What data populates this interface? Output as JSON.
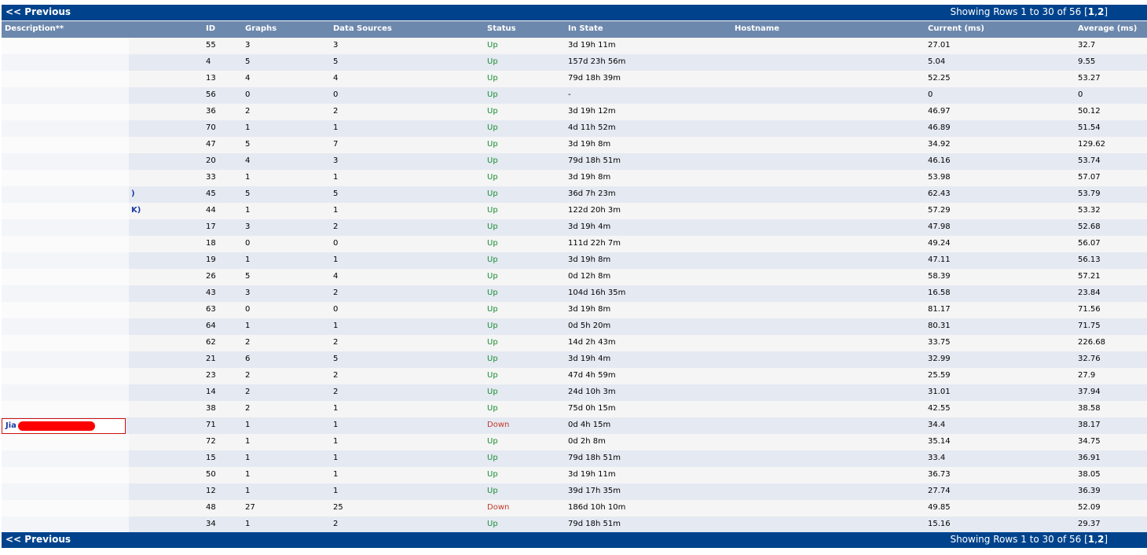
{
  "nav": {
    "prev_label": "<< Previous",
    "info_text": "Showing Rows 1 to 30 of 56 [",
    "page1": "1",
    "sep": ",",
    "page2": "2",
    "info_close": "]"
  },
  "columns": {
    "description": "Description**",
    "id": "ID",
    "graphs": "Graphs",
    "data_sources": "Data Sources",
    "status": "Status",
    "in_state": "In State",
    "hostname": "Hostname",
    "current": "Current (ms)",
    "average": "Average (ms)"
  },
  "rows": [
    {
      "desc": "",
      "id": "55",
      "graphs": "3",
      "ds": "3",
      "status": "Up",
      "state": "3d 19h 11m",
      "cur": "27.01",
      "avg": "32.7"
    },
    {
      "desc": "",
      "id": "4",
      "graphs": "5",
      "ds": "5",
      "status": "Up",
      "state": "157d 23h 56m",
      "cur": "5.04",
      "avg": "9.55"
    },
    {
      "desc": "",
      "id": "13",
      "graphs": "4",
      "ds": "4",
      "status": "Up",
      "state": "79d 18h 39m",
      "cur": "52.25",
      "avg": "53.27"
    },
    {
      "desc": "",
      "id": "56",
      "graphs": "0",
      "ds": "0",
      "status": "Up",
      "state": "-",
      "cur": "0",
      "avg": "0"
    },
    {
      "desc": "",
      "id": "36",
      "graphs": "2",
      "ds": "2",
      "status": "Up",
      "state": "3d 19h 12m",
      "cur": "46.97",
      "avg": "50.12"
    },
    {
      "desc": "",
      "id": "70",
      "graphs": "1",
      "ds": "1",
      "status": "Up",
      "state": "4d 11h 52m",
      "cur": "46.89",
      "avg": "51.54"
    },
    {
      "desc": "",
      "id": "47",
      "graphs": "5",
      "ds": "7",
      "status": "Up",
      "state": "3d 19h 8m",
      "cur": "34.92",
      "avg": "129.62"
    },
    {
      "desc": "",
      "id": "20",
      "graphs": "4",
      "ds": "3",
      "status": "Up",
      "state": "79d 18h 51m",
      "cur": "46.16",
      "avg": "53.74"
    },
    {
      "desc": "",
      "id": "33",
      "graphs": "1",
      "ds": "1",
      "status": "Up",
      "state": "3d 19h 8m",
      "cur": "53.98",
      "avg": "57.07"
    },
    {
      "desc": ")",
      "id": "45",
      "graphs": "5",
      "ds": "5",
      "status": "Up",
      "state": "36d 7h 23m",
      "cur": "62.43",
      "avg": "53.79"
    },
    {
      "desc": "K)",
      "id": "44",
      "graphs": "1",
      "ds": "1",
      "status": "Up",
      "state": "122d 20h 3m",
      "cur": "57.29",
      "avg": "53.32"
    },
    {
      "desc": "",
      "id": "17",
      "graphs": "3",
      "ds": "2",
      "status": "Up",
      "state": "3d 19h 4m",
      "cur": "47.98",
      "avg": "52.68"
    },
    {
      "desc": "",
      "id": "18",
      "graphs": "0",
      "ds": "0",
      "status": "Up",
      "state": "111d 22h 7m",
      "cur": "49.24",
      "avg": "56.07"
    },
    {
      "desc": "",
      "id": "19",
      "graphs": "1",
      "ds": "1",
      "status": "Up",
      "state": "3d 19h 8m",
      "cur": "47.11",
      "avg": "56.13"
    },
    {
      "desc": "",
      "id": "26",
      "graphs": "5",
      "ds": "4",
      "status": "Up",
      "state": "0d 12h 8m",
      "cur": "58.39",
      "avg": "57.21"
    },
    {
      "desc": "",
      "id": "43",
      "graphs": "3",
      "ds": "2",
      "status": "Up",
      "state": "104d 16h 35m",
      "cur": "16.58",
      "avg": "23.84"
    },
    {
      "desc": "",
      "id": "63",
      "graphs": "0",
      "ds": "0",
      "status": "Up",
      "state": "3d 19h 8m",
      "cur": "81.17",
      "avg": "71.56"
    },
    {
      "desc": "",
      "id": "64",
      "graphs": "1",
      "ds": "1",
      "status": "Up",
      "state": "0d 5h 20m",
      "cur": "80.31",
      "avg": "71.75"
    },
    {
      "desc": "",
      "id": "62",
      "graphs": "2",
      "ds": "2",
      "status": "Up",
      "state": "14d 2h 43m",
      "cur": "33.75",
      "avg": "226.68"
    },
    {
      "desc": "",
      "id": "21",
      "graphs": "6",
      "ds": "5",
      "status": "Up",
      "state": "3d 19h 4m",
      "cur": "32.99",
      "avg": "32.76"
    },
    {
      "desc": "",
      "id": "23",
      "graphs": "2",
      "ds": "2",
      "status": "Up",
      "state": "47d 4h 59m",
      "cur": "25.59",
      "avg": "27.9"
    },
    {
      "desc": "",
      "id": "14",
      "graphs": "2",
      "ds": "2",
      "status": "Up",
      "state": "24d 10h 3m",
      "cur": "31.01",
      "avg": "37.94"
    },
    {
      "desc": "",
      "id": "38",
      "graphs": "2",
      "ds": "1",
      "status": "Up",
      "state": "75d 0h 15m",
      "cur": "42.55",
      "avg": "38.58"
    },
    {
      "desc": "Jia                 001",
      "id": "71",
      "graphs": "1",
      "ds": "1",
      "status": "Down",
      "state": "0d 4h 15m",
      "cur": "34.4",
      "avg": "38.17",
      "highlight": true
    },
    {
      "desc": "",
      "id": "72",
      "graphs": "1",
      "ds": "1",
      "status": "Up",
      "state": "0d 2h 8m",
      "cur": "35.14",
      "avg": "34.75"
    },
    {
      "desc": "",
      "id": "15",
      "graphs": "1",
      "ds": "1",
      "status": "Up",
      "state": "79d 18h 51m",
      "cur": "33.4",
      "avg": "36.91"
    },
    {
      "desc": "",
      "id": "50",
      "graphs": "1",
      "ds": "1",
      "status": "Up",
      "state": "3d 19h 11m",
      "cur": "36.73",
      "avg": "38.05"
    },
    {
      "desc": "",
      "id": "12",
      "graphs": "1",
      "ds": "1",
      "status": "Up",
      "state": "39d 17h 35m",
      "cur": "27.74",
      "avg": "36.39"
    },
    {
      "desc": "",
      "id": "48",
      "graphs": "27",
      "ds": "25",
      "status": "Down",
      "state": "186d 10h 10m",
      "cur": "49.85",
      "avg": "52.09"
    },
    {
      "desc": "",
      "id": "34",
      "graphs": "1",
      "ds": "2",
      "status": "Up",
      "state": "79d 18h 51m",
      "cur": "15.16",
      "avg": "29.37"
    }
  ],
  "colors": {
    "nav_bg": "#00438c",
    "header_bg": "#6d88ad",
    "row_odd": "#f5f5f5",
    "row_even": "#e5e9f2",
    "status_up": "#198e32",
    "status_down": "#c0392b",
    "link": "#1a3ba3",
    "highlight_border": "#d01010",
    "redaction": "#ff0000"
  }
}
